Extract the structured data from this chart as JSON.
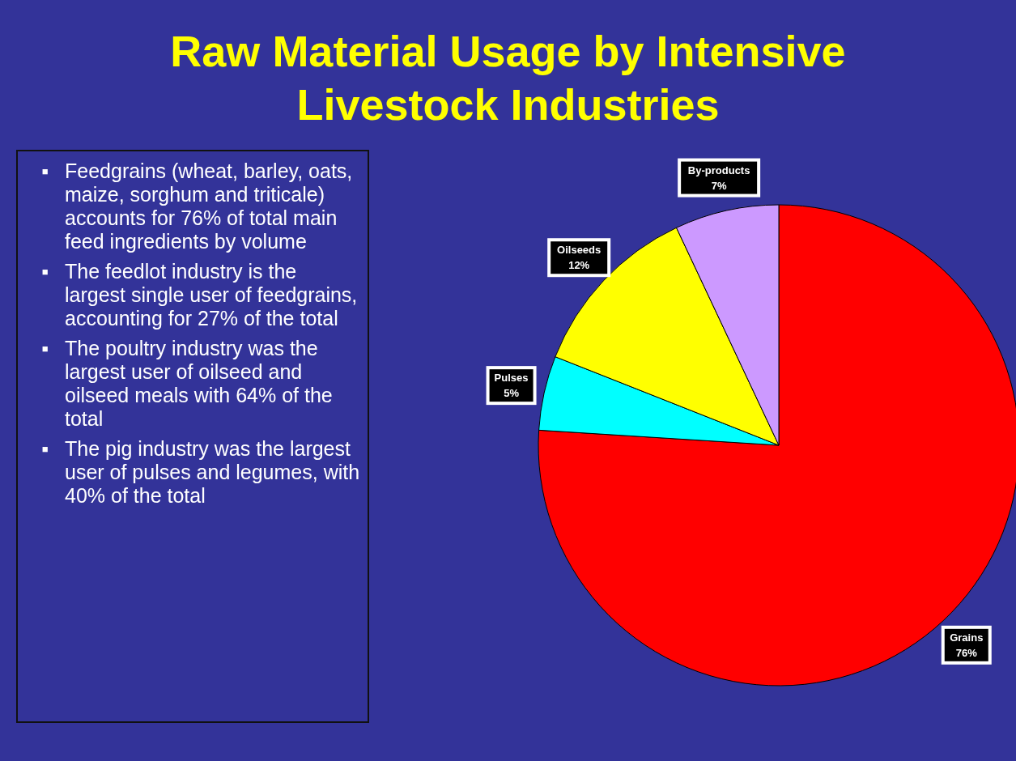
{
  "chart_data": {
    "type": "pie",
    "title": "Raw Material Usage by Intensive Livestock Industries",
    "categories": [
      "Grains",
      "Pulses",
      "Oilseeds",
      "By-products"
    ],
    "values": [
      76,
      5,
      12,
      7
    ],
    "colors": [
      "#ff0000",
      "#00ffff",
      "#ffff00",
      "#cc99ff"
    ],
    "value_labels": [
      "76%",
      "5%",
      "12%",
      "7%"
    ],
    "legend": false,
    "annotations": [
      "▪ Feedgrains (wheat, barley, oats, maize, sorghum and triticale) accounts for 76% of total main feed ingredients by volume",
      "▪ The feedlot industry is the largest single user of feedgrains, accounting for 27% of the total",
      "▪ The poultry industry was the largest user of oilseed and oilseed meals with 64% of the total",
      "▪ The pig industry was the largest user of pulses and legumes, with 40% of the total"
    ]
  }
}
